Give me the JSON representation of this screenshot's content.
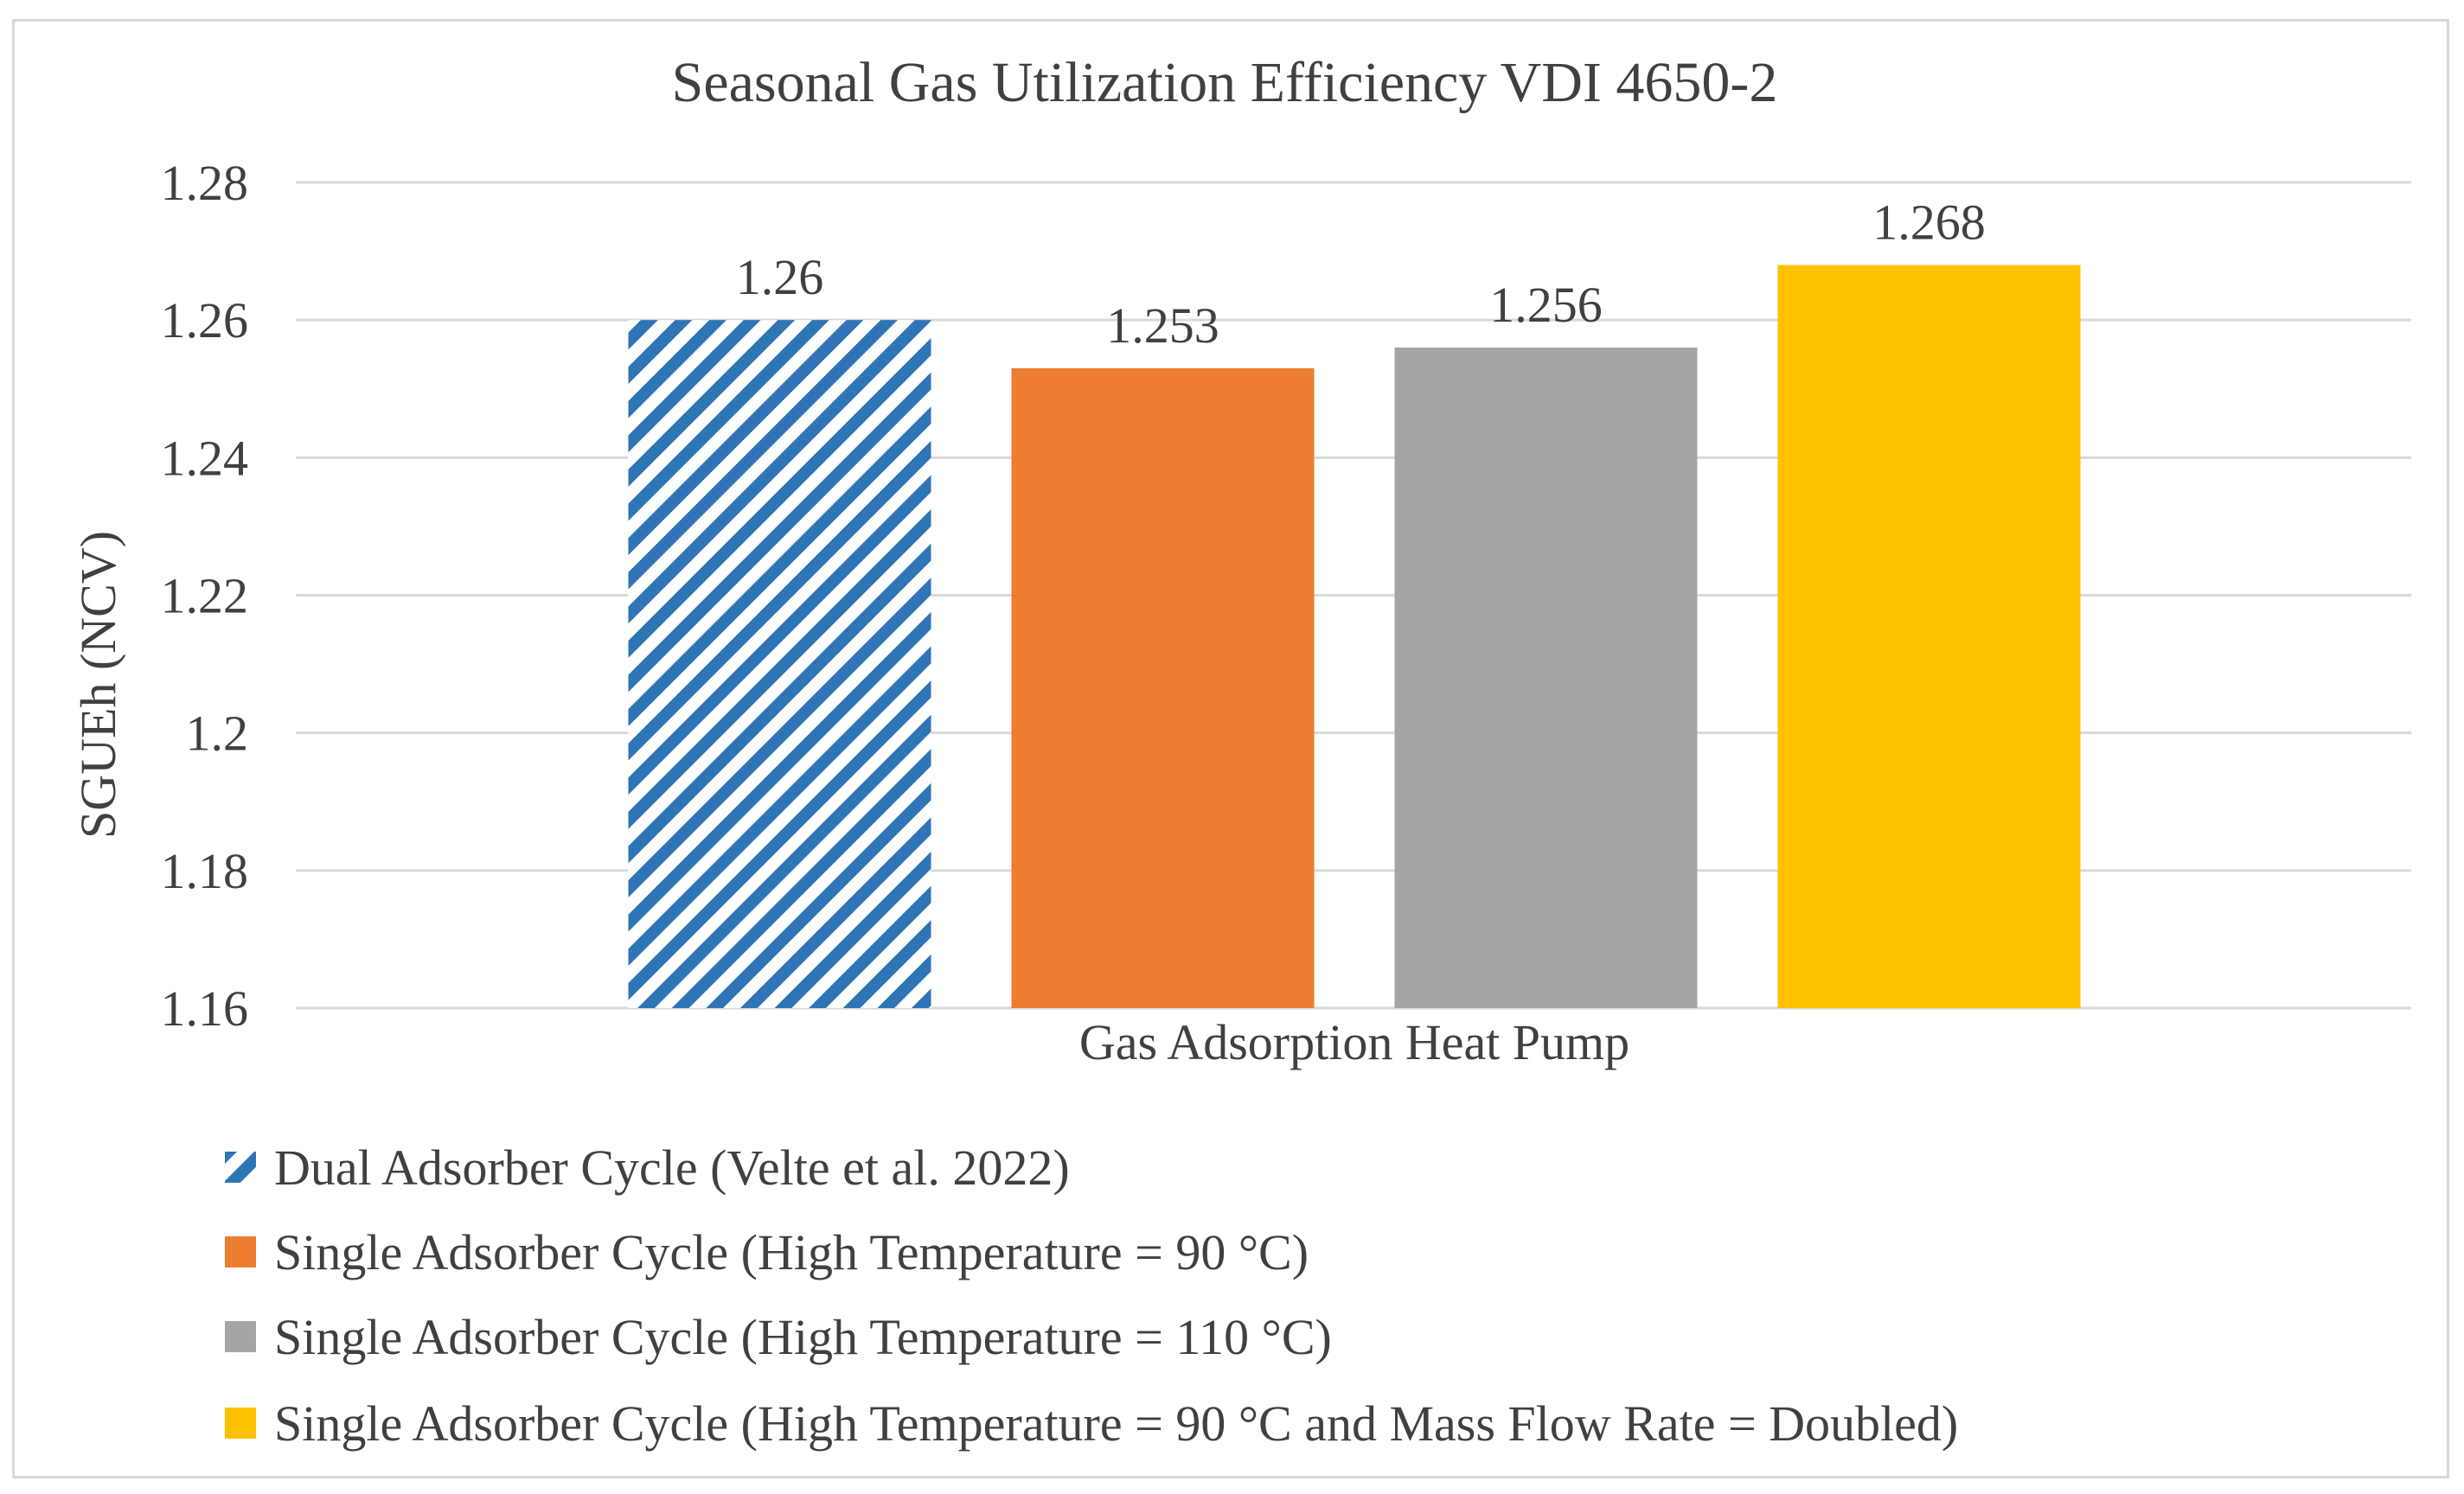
{
  "chart_data": {
    "type": "bar",
    "title": "Seasonal Gas Utilization Efficiency VDI 4650-2",
    "xlabel": "",
    "ylabel": "SGUEh (NCV)",
    "categories": [
      "Gas Adsorption Heat Pump"
    ],
    "ylim": [
      1.16,
      1.28
    ],
    "yticks": [
      1.16,
      1.18,
      1.2,
      1.22,
      1.24,
      1.26,
      1.28
    ],
    "ytick_labels": [
      "1.16",
      "1.18",
      "1.2",
      "1.22",
      "1.24",
      "1.26",
      "1.28"
    ],
    "grid": true,
    "legend_position": "bottom-left",
    "series": [
      {
        "name": "Dual Adsorber Cycle (Velte et al. 2022)",
        "values": [
          1.26
        ],
        "label": "1.26",
        "color": "#2e75b6",
        "pattern": "diagonal-stripes"
      },
      {
        "name": "Single Adsorber Cycle (High Temperature = 90 °C)",
        "values": [
          1.253
        ],
        "label": "1.253",
        "color": "#ed7d31",
        "pattern": "solid"
      },
      {
        "name": "Single Adsorber Cycle (High Temperature = 110 °C)",
        "values": [
          1.256
        ],
        "label": "1.256",
        "color": "#a5a5a5",
        "pattern": "solid"
      },
      {
        "name": "Single Adsorber Cycle (High Temperature = 90 °C and Mass Flow Rate = Doubled)",
        "values": [
          1.268
        ],
        "label": "1.268",
        "color": "#ffc000",
        "pattern": "solid"
      }
    ]
  }
}
